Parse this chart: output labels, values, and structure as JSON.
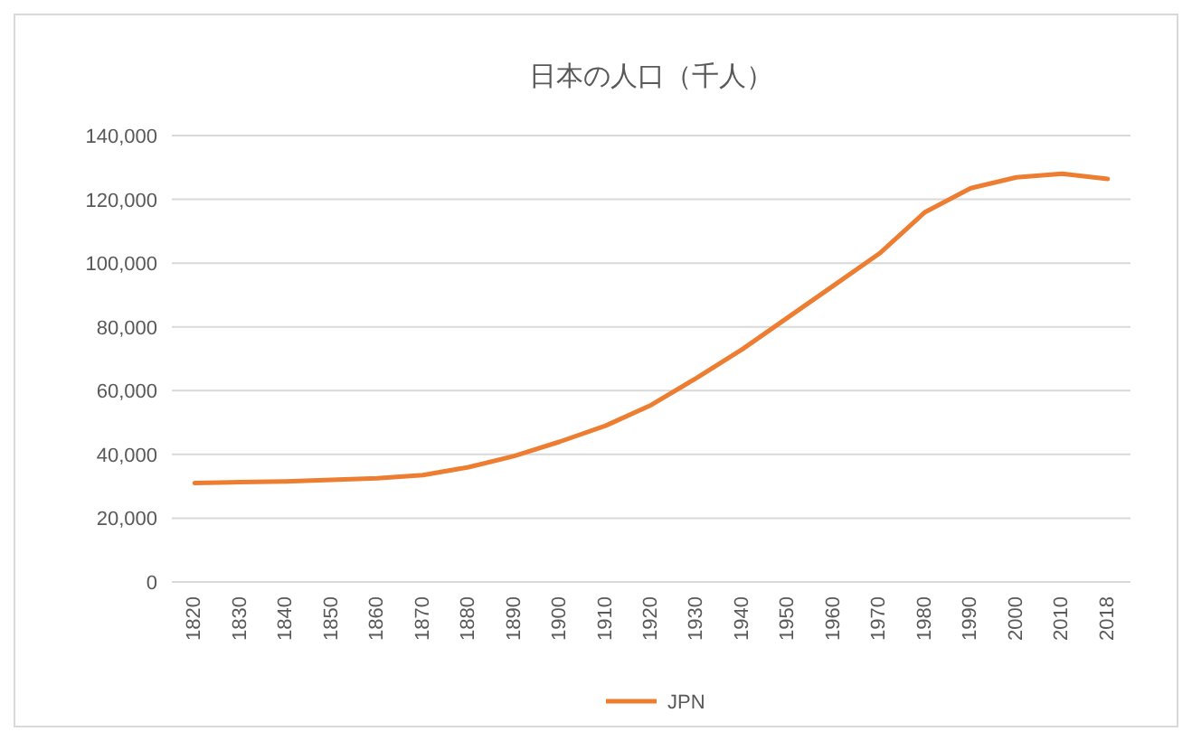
{
  "chart_data": {
    "type": "line",
    "title": "日本の人口（千人）",
    "categories": [
      "1820",
      "1830",
      "1840",
      "1850",
      "1860",
      "1870",
      "1880",
      "1890",
      "1900",
      "1910",
      "1920",
      "1930",
      "1940",
      "1950",
      "1960",
      "1970",
      "1980",
      "1990",
      "2000",
      "2010",
      "2018"
    ],
    "series": [
      {
        "name": "JPN",
        "color": "#ed7d31",
        "values": [
          31000,
          31300,
          31500,
          32000,
          32500,
          33500,
          36000,
          39500,
          44000,
          49000,
          55500,
          64000,
          73000,
          83000,
          93000,
          103000,
          116000,
          123500,
          126900,
          128000,
          126400
        ]
      }
    ],
    "ylim": [
      0,
      140000
    ],
    "yticks": [
      {
        "value": 0,
        "label": "0"
      },
      {
        "value": 20000,
        "label": "20,000"
      },
      {
        "value": 40000,
        "label": "40,000"
      },
      {
        "value": 60000,
        "label": "60,000"
      },
      {
        "value": 80000,
        "label": "80,000"
      },
      {
        "value": 100000,
        "label": "100,000"
      },
      {
        "value": 120000,
        "label": "120,000"
      },
      {
        "value": 140000,
        "label": "140,000"
      }
    ],
    "grid": "y",
    "legend": "bottom"
  }
}
